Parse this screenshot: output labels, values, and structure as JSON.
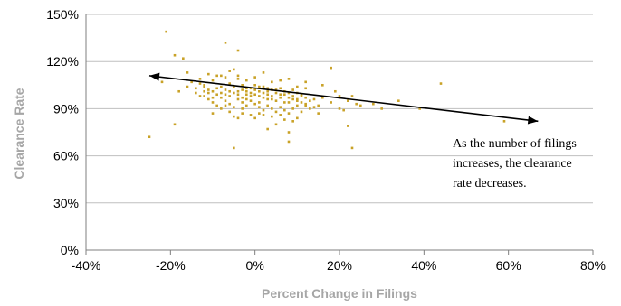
{
  "chart_data": {
    "type": "scatter",
    "title": "",
    "xlabel": "Percent Change in Filings",
    "ylabel": "Clearance Rate",
    "xlim": [
      -40,
      80
    ],
    "ylim": [
      0,
      150
    ],
    "x_ticks": [
      "-40%",
      "-20%",
      "0%",
      "20%",
      "40%",
      "60%",
      "80%"
    ],
    "y_ticks": [
      "0%",
      "30%",
      "60%",
      "90%",
      "120%",
      "150%"
    ],
    "grid": "horizontal",
    "marker_color": "#c9a227",
    "arrow": {
      "from": [
        -25,
        111
      ],
      "to": [
        67,
        82
      ]
    },
    "annotation": [
      "As the number of filings",
      "increases, the clearance",
      "rate decreases."
    ],
    "points": [
      [
        -21,
        139
      ],
      [
        -19,
        124
      ],
      [
        -17,
        122
      ],
      [
        -25,
        72
      ],
      [
        -19,
        80
      ],
      [
        -16,
        113
      ],
      [
        -10,
        101
      ],
      [
        -10,
        108
      ],
      [
        -9,
        111
      ],
      [
        -8,
        104
      ],
      [
        -7,
        132
      ],
      [
        -7,
        110
      ],
      [
        -6,
        106
      ],
      [
        -5,
        115
      ],
      [
        -4,
        127
      ],
      [
        -4,
        109
      ],
      [
        -3,
        102
      ],
      [
        -2,
        99
      ],
      [
        -1,
        103
      ],
      [
        0,
        105
      ],
      [
        1,
        98
      ],
      [
        2,
        104
      ],
      [
        3,
        101
      ],
      [
        4,
        96
      ],
      [
        5,
        100
      ],
      [
        6,
        97
      ],
      [
        7,
        99
      ],
      [
        8,
        94
      ],
      [
        9,
        102
      ],
      [
        10,
        95
      ],
      [
        11,
        98
      ],
      [
        12,
        93
      ],
      [
        14,
        96
      ],
      [
        15,
        92
      ],
      [
        16,
        105
      ],
      [
        18,
        116
      ],
      [
        19,
        101
      ],
      [
        20,
        98
      ],
      [
        22,
        95
      ],
      [
        24,
        93
      ],
      [
        -14,
        103
      ],
      [
        -13,
        106
      ],
      [
        -12,
        104
      ],
      [
        -11,
        102
      ],
      [
        -9,
        99
      ],
      [
        -8,
        97
      ],
      [
        -7,
        95
      ],
      [
        -6,
        93
      ],
      [
        -5,
        91
      ],
      [
        -4,
        96
      ],
      [
        -3,
        94
      ],
      [
        -2,
        92
      ],
      [
        -1,
        95
      ],
      [
        0,
        93
      ],
      [
        1,
        91
      ],
      [
        2,
        89
      ],
      [
        3,
        92
      ],
      [
        4,
        90
      ],
      [
        5,
        88
      ],
      [
        6,
        91
      ],
      [
        7,
        89
      ],
      [
        8,
        87
      ],
      [
        9,
        90
      ],
      [
        10,
        92
      ],
      [
        11,
        88
      ],
      [
        13,
        90
      ],
      [
        -12,
        98
      ],
      [
        -11,
        96
      ],
      [
        -10,
        94
      ],
      [
        -9,
        92
      ],
      [
        -8,
        100
      ],
      [
        -7,
        102
      ],
      [
        -6,
        98
      ],
      [
        -5,
        100
      ],
      [
        -4,
        101
      ],
      [
        -3,
        97
      ],
      [
        -2,
        103
      ],
      [
        -1,
        100
      ],
      [
        0,
        99
      ],
      [
        1,
        101
      ],
      [
        2,
        97
      ],
      [
        3,
        99
      ],
      [
        4,
        102
      ],
      [
        5,
        95
      ],
      [
        6,
        103
      ],
      [
        7,
        94
      ],
      [
        8,
        97
      ],
      [
        9,
        96
      ],
      [
        10,
        100
      ],
      [
        11,
        99
      ],
      [
        12,
        97
      ],
      [
        13,
        95
      ],
      [
        -10,
        87
      ],
      [
        -8,
        90
      ],
      [
        -6,
        88
      ],
      [
        -5,
        85
      ],
      [
        -4,
        84
      ],
      [
        -3,
        87
      ],
      [
        -1,
        86
      ],
      [
        0,
        84
      ],
      [
        2,
        86
      ],
      [
        3,
        77
      ],
      [
        5,
        80
      ],
      [
        7,
        83
      ],
      [
        8,
        75
      ],
      [
        10,
        84
      ],
      [
        -5,
        65
      ],
      [
        8,
        69
      ],
      [
        12,
        103
      ],
      [
        15,
        87
      ],
      [
        20,
        90
      ],
      [
        22,
        79
      ],
      [
        23,
        65
      ],
      [
        25,
        92
      ],
      [
        28,
        93
      ],
      [
        30,
        90
      ],
      [
        34,
        95
      ],
      [
        39,
        90
      ],
      [
        44,
        106
      ],
      [
        59,
        82
      ],
      [
        -22,
        107
      ],
      [
        -18,
        101
      ],
      [
        -16,
        104
      ],
      [
        -15,
        107
      ],
      [
        -13,
        109
      ],
      [
        -12,
        105
      ],
      [
        -11,
        112
      ],
      [
        -8,
        111
      ],
      [
        -6,
        114
      ],
      [
        -4,
        111
      ],
      [
        -2,
        108
      ],
      [
        0,
        110
      ],
      [
        2,
        113
      ],
      [
        4,
        107
      ],
      [
        6,
        108
      ],
      [
        8,
        109
      ],
      [
        10,
        104
      ],
      [
        12,
        107
      ],
      [
        -14,
        100
      ],
      [
        -13,
        98
      ],
      [
        -12,
        101
      ],
      [
        -11,
        100
      ],
      [
        -10,
        97
      ],
      [
        -9,
        103
      ],
      [
        -7,
        99
      ],
      [
        -6,
        101
      ],
      [
        -5,
        104
      ],
      [
        -4,
        99
      ],
      [
        -3,
        105
      ],
      [
        -2,
        101
      ],
      [
        -1,
        98
      ],
      [
        0,
        102
      ],
      [
        1,
        104
      ],
      [
        2,
        100
      ],
      [
        3,
        103
      ],
      [
        4,
        98
      ],
      [
        5,
        102
      ],
      [
        6,
        99
      ],
      [
        7,
        101
      ],
      [
        8,
        100
      ],
      [
        9,
        98
      ],
      [
        10,
        96
      ],
      [
        11,
        94
      ],
      [
        12,
        92
      ],
      [
        14,
        91
      ],
      [
        16,
        97
      ],
      [
        18,
        94
      ],
      [
        21,
        89
      ],
      [
        23,
        98
      ],
      [
        -7,
        92
      ],
      [
        -3,
        90
      ],
      [
        1,
        87
      ],
      [
        4,
        85
      ],
      [
        6,
        86
      ],
      [
        9,
        82
      ],
      [
        -2,
        96
      ],
      [
        1,
        94
      ],
      [
        3,
        96
      ]
    ]
  }
}
